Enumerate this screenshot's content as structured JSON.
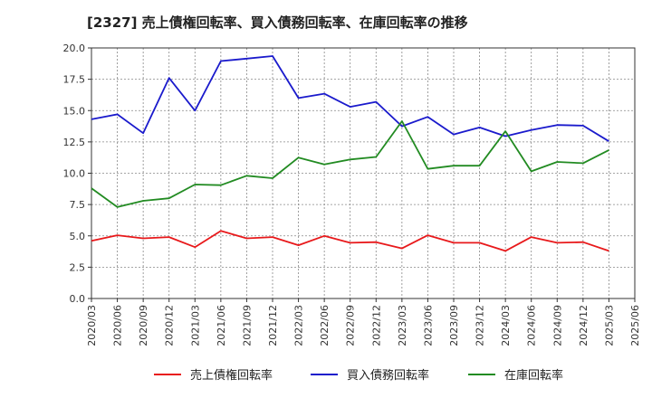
{
  "chart_data": {
    "type": "line",
    "title": "[2327]  売上債権回転率、買入債務回転率、在庫回転率の推移",
    "xlabel": "",
    "ylabel": "",
    "ylim": [
      0,
      20
    ],
    "yticks": [
      0.0,
      2.5,
      5.0,
      7.5,
      10.0,
      12.5,
      15.0,
      17.5,
      20.0
    ],
    "ytick_labels": [
      "0.0",
      "2.5",
      "5.0",
      "7.5",
      "10.0",
      "12.5",
      "15.0",
      "17.5",
      "20.0"
    ],
    "categories": [
      "2020/03",
      "2020/06",
      "2020/09",
      "2020/12",
      "2021/03",
      "2021/06",
      "2021/09",
      "2021/12",
      "2022/03",
      "2022/06",
      "2022/09",
      "2022/12",
      "2023/03",
      "2023/06",
      "2023/09",
      "2023/12",
      "2024/03",
      "2024/06",
      "2024/09",
      "2024/12",
      "2025/03",
      "2025/06"
    ],
    "grid": true,
    "legend_position": "bottom",
    "series": [
      {
        "name": "売上債権回転率",
        "color": "#e8191b",
        "values": [
          4.6,
          5.05,
          4.8,
          4.9,
          4.1,
          5.4,
          4.8,
          4.9,
          4.25,
          5.0,
          4.45,
          4.5,
          4.0,
          5.05,
          4.45,
          4.45,
          3.8,
          4.9,
          4.45,
          4.5,
          3.8,
          null
        ]
      },
      {
        "name": "買入債務回転率",
        "color": "#1a1acc",
        "values": [
          14.3,
          14.7,
          13.2,
          17.6,
          15.0,
          18.95,
          19.15,
          19.35,
          16.0,
          16.35,
          15.3,
          15.7,
          13.75,
          14.5,
          13.1,
          13.65,
          12.95,
          13.45,
          13.85,
          13.8,
          12.55,
          null
        ]
      },
      {
        "name": "在庫回転率",
        "color": "#228b22",
        "values": [
          8.8,
          7.3,
          7.8,
          8.0,
          9.1,
          9.05,
          9.8,
          9.6,
          11.25,
          10.7,
          11.1,
          11.3,
          14.15,
          10.35,
          10.6,
          10.6,
          13.35,
          10.15,
          10.9,
          10.8,
          11.85,
          null
        ]
      }
    ]
  }
}
